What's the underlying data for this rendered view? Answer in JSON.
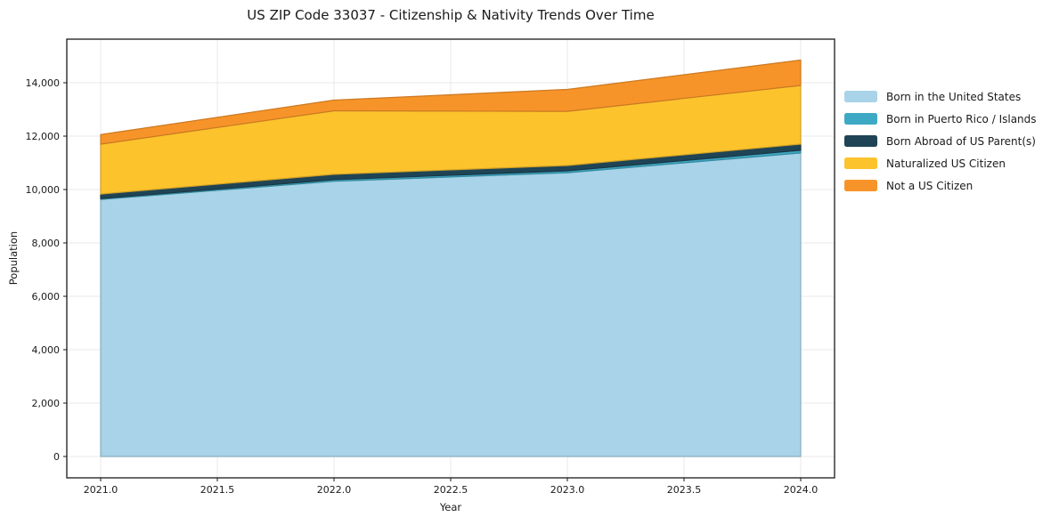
{
  "title": "US ZIP Code 33037 - Citizenship & Nativity Trends Over Time",
  "chart_data": {
    "type": "area",
    "stacked": true,
    "title": "US ZIP Code 33037 - Citizenship & Nativity Trends Over Time",
    "xlabel": "Year",
    "ylabel": "Population",
    "x": [
      2021,
      2022,
      2023,
      2024
    ],
    "series": [
      {
        "name": "Born in the United States",
        "color": "#a8d3e8",
        "values": [
          9630,
          10310,
          10630,
          11370
        ]
      },
      {
        "name": "Born in Puerto Rico / Islands",
        "color": "#3ea9c4",
        "values": [
          30,
          60,
          70,
          100
        ]
      },
      {
        "name": "Born Abroad of US Parent(s)",
        "color": "#1f4455",
        "values": [
          170,
          200,
          200,
          230
        ]
      },
      {
        "name": "Naturalized US Citizen",
        "color": "#fcc32d",
        "values": [
          1870,
          2380,
          2030,
          2200
        ]
      },
      {
        "name": "Not a US Citizen",
        "color": "#f79429",
        "values": [
          360,
          400,
          820,
          950
        ]
      }
    ],
    "totals": [
      12060,
      13350,
      13750,
      14850
    ],
    "xlim": [
      2020.855,
      2024.145
    ],
    "ylim": [
      -800,
      15633
    ],
    "xticks": [
      {
        "v": 2021.0,
        "label": "2021.0"
      },
      {
        "v": 2021.5,
        "label": "2021.5"
      },
      {
        "v": 2022.0,
        "label": "2022.0"
      },
      {
        "v": 2022.5,
        "label": "2022.5"
      },
      {
        "v": 2023.0,
        "label": "2023.0"
      },
      {
        "v": 2023.5,
        "label": "2023.5"
      },
      {
        "v": 2024.0,
        "label": "2024.0"
      }
    ],
    "yticks": [
      {
        "v": 0,
        "label": "0"
      },
      {
        "v": 2000,
        "label": "2,000"
      },
      {
        "v": 4000,
        "label": "4,000"
      },
      {
        "v": 6000,
        "label": "6,000"
      },
      {
        "v": 8000,
        "label": "8,000"
      },
      {
        "v": 10000,
        "label": "10,000"
      },
      {
        "v": 12000,
        "label": "12,000"
      },
      {
        "v": 14000,
        "label": "14,000"
      }
    ],
    "grid": true,
    "grid_color": "#e9e9e9",
    "spine_color": "#1a1a1a",
    "legend_position": "right"
  }
}
